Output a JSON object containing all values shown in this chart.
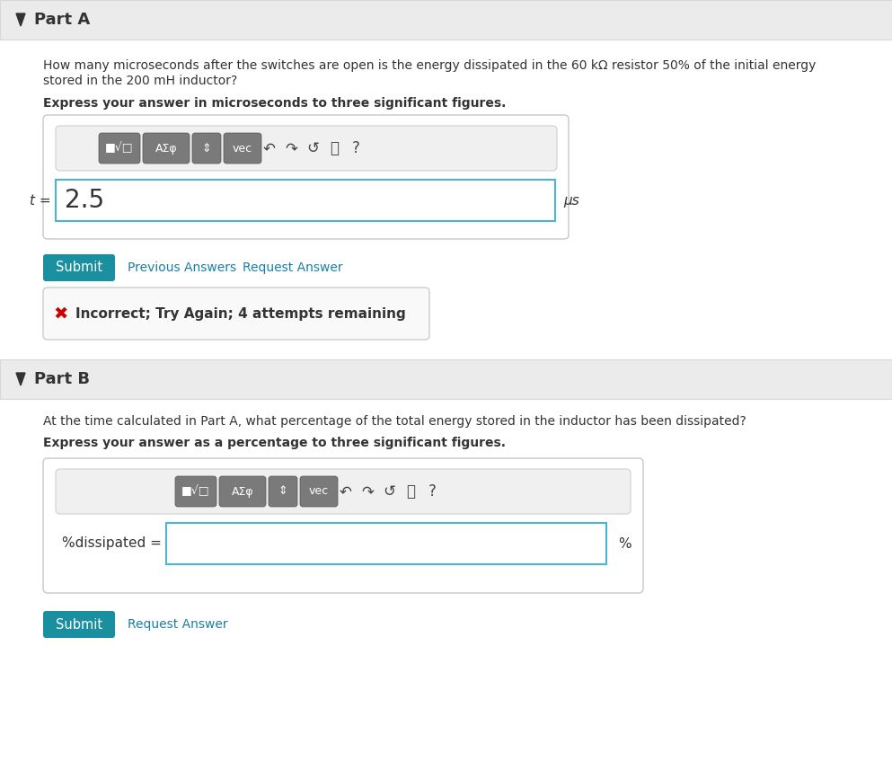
{
  "bg_color": "#f5f5f5",
  "white": "#ffffff",
  "header_bg": "#ebebeb",
  "header_border": "#d8d8d8",
  "teal_btn": "#1a8fa0",
  "link_color": "#1a7ea8",
  "border_color": "#c8c8c8",
  "error_bg": "#ffffff",
  "error_x_color": "#cc0000",
  "text_color": "#333333",
  "input_border": "#4db3d6",
  "toolbar_btn_bg": "#7a7a7a",
  "toolbar_area_bg": "#f0f0f0",
  "toolbar_area_border": "#d0d0d0",
  "part_a_title": "Part A",
  "part_b_title": "Part B",
  "part_a_q1": "How many microseconds after the switches are open is the energy dissipated in the 60 kΩ resistor 50% of the initial energy",
  "part_a_q2": "stored in the 200 mH inductor?",
  "part_a_instruction": "Express your answer in microseconds to three significant figures.",
  "part_a_label": "t =",
  "part_a_value": "2.5",
  "part_a_unit": "μs",
  "part_b_question": "At the time calculated in Part A, what percentage of the total energy stored in the inductor has been dissipated?",
  "part_b_instruction": "Express your answer as a percentage to three significant figures.",
  "part_b_label": "%dissipated =",
  "part_b_unit": "%",
  "submit_text": "Submit",
  "prev_answers_text": "Previous Answers",
  "request_answer_text": "Request Answer",
  "request_answer_text_b": "Request Answer",
  "error_text": "Incorrect; Try Again; 4 attempts remaining",
  "toolbar_btn_labels": [
    "■√□",
    "AΣφ",
    "⇕",
    "vec"
  ],
  "toolbar_icon_labels": [
    "↶",
    "↷",
    "↺",
    "⌹",
    "?"
  ]
}
